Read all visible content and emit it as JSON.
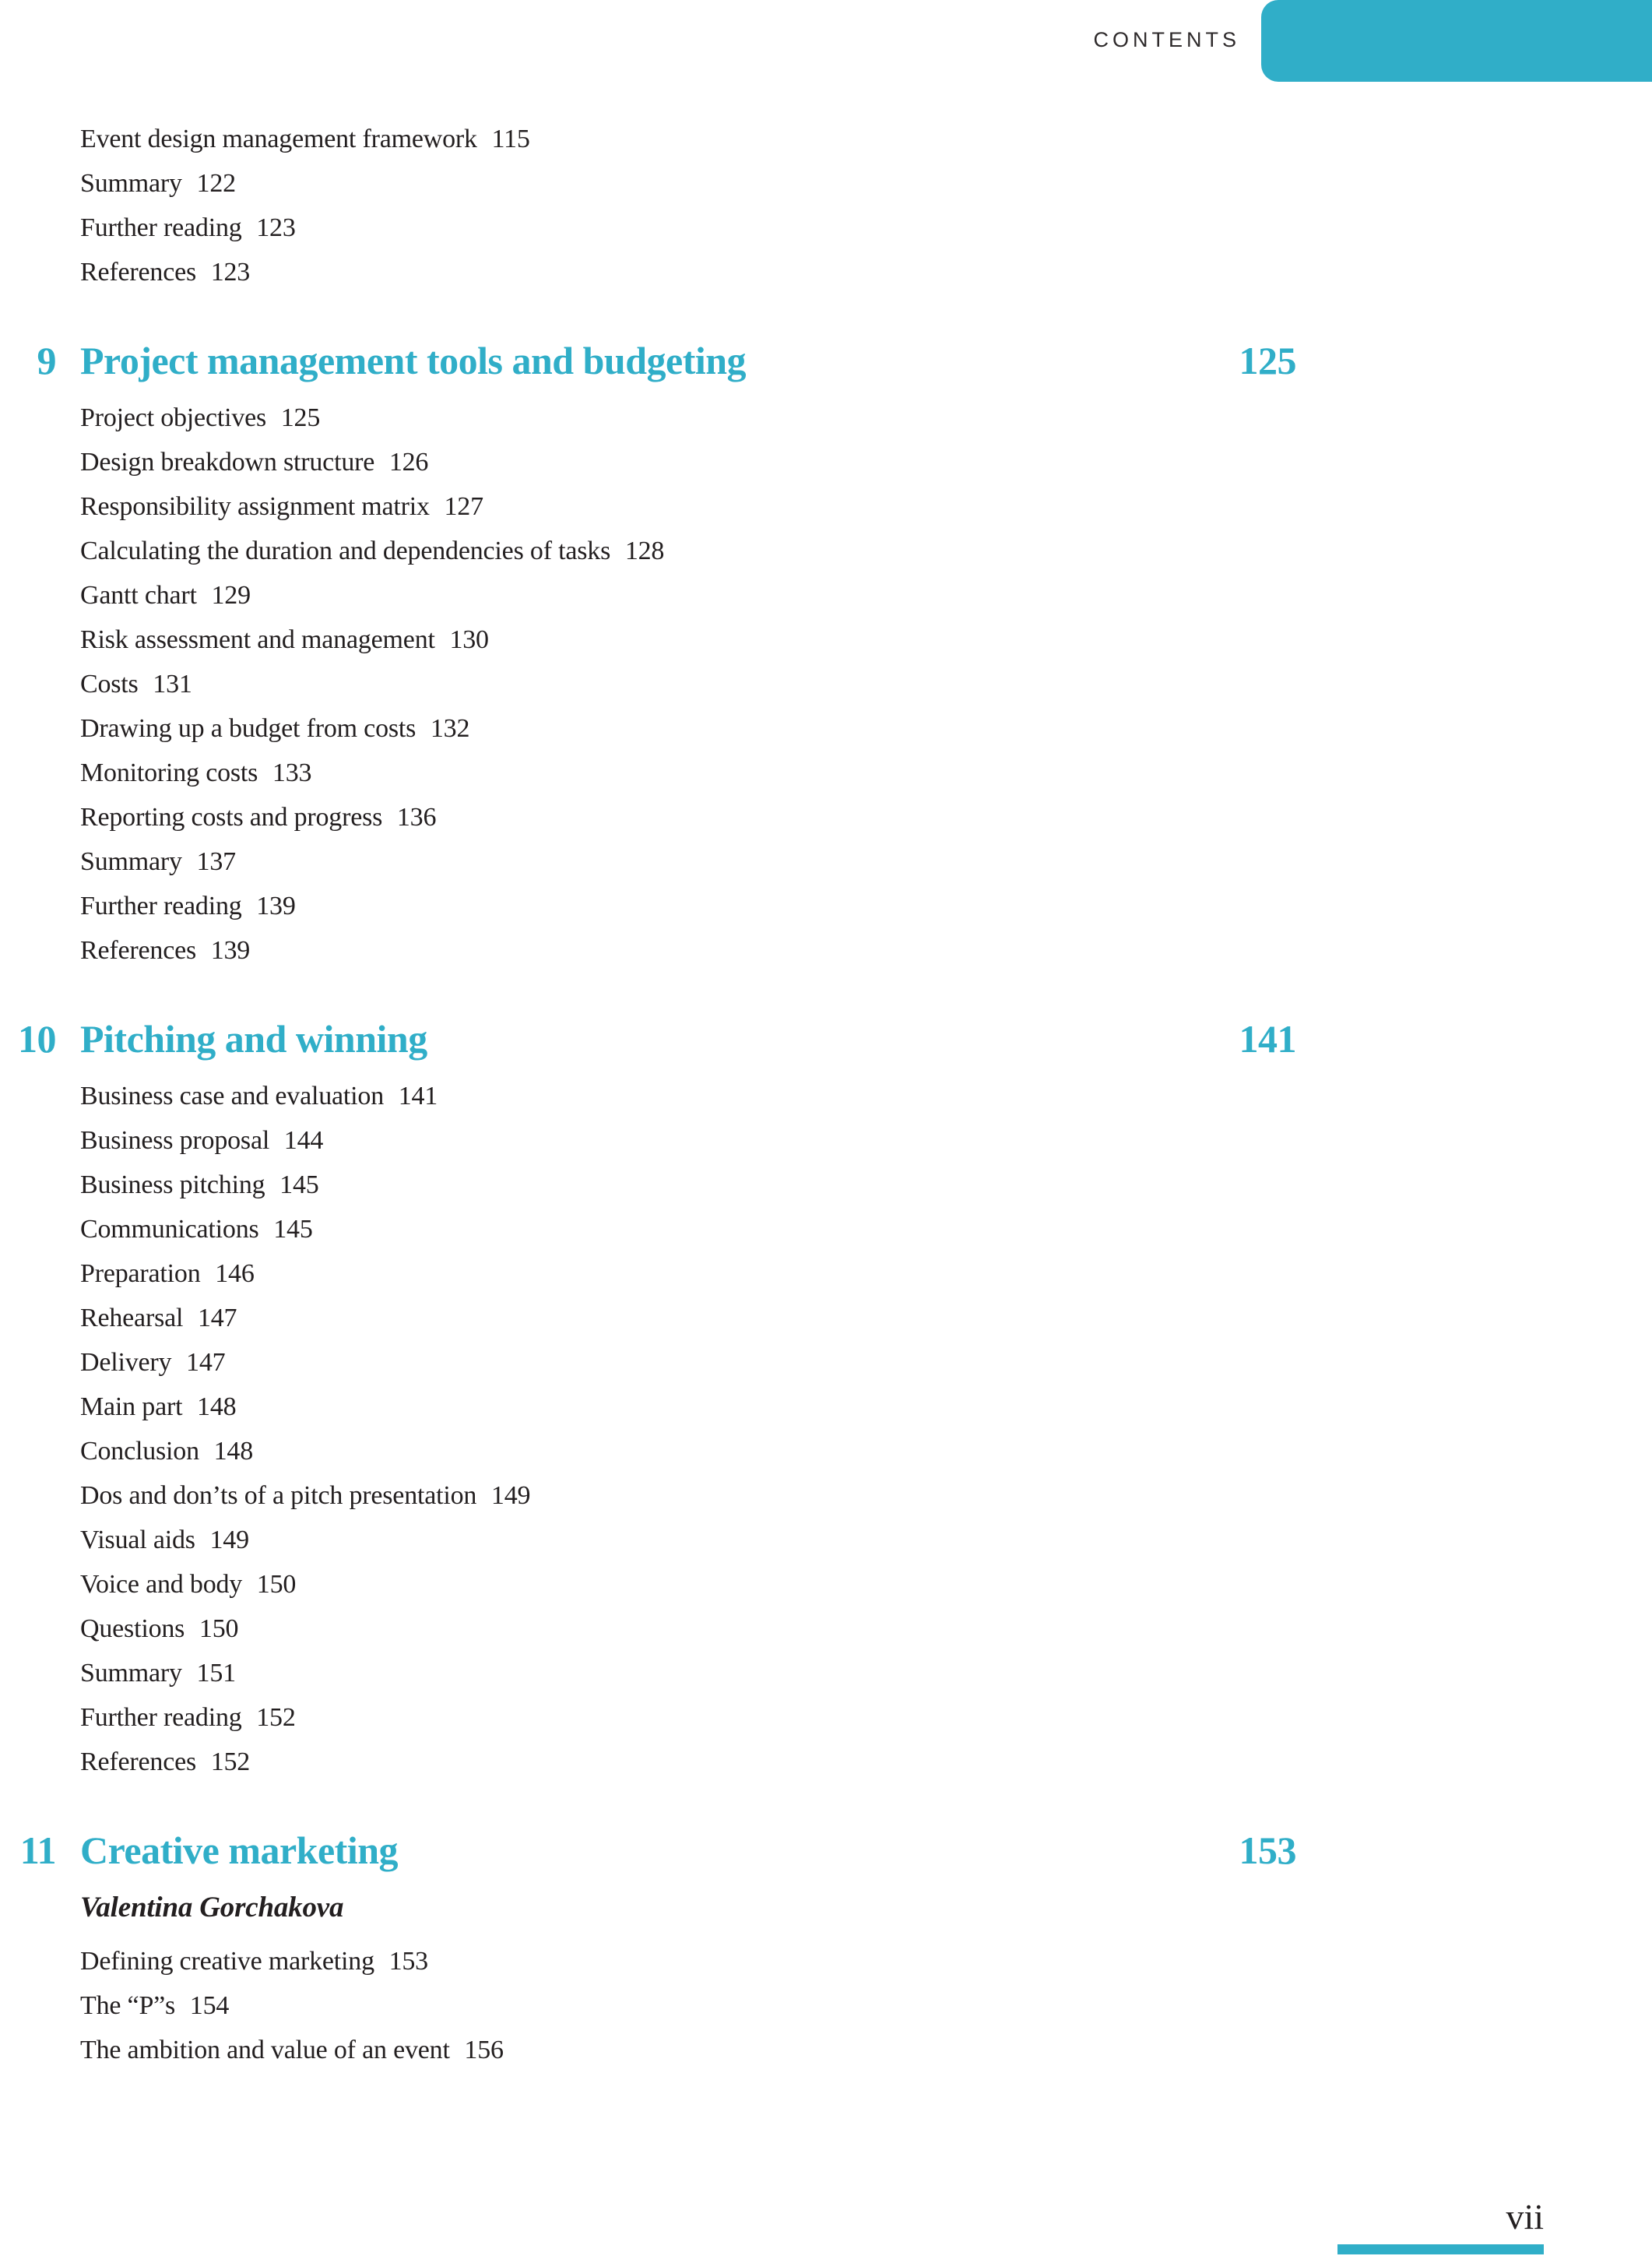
{
  "page": {
    "accent_color": "#30aec8",
    "text_color": "#231f20"
  },
  "header": {
    "label": "CONTENTS"
  },
  "footer": {
    "page_number": "vii"
  },
  "toc": {
    "leading_items": [
      {
        "label": "Event design management framework",
        "page": "115"
      },
      {
        "label": "Summary",
        "page": "122"
      },
      {
        "label": "Further reading",
        "page": "123"
      },
      {
        "label": "References",
        "page": "123"
      }
    ],
    "chapters": [
      {
        "number": "9",
        "title": "Project management tools and budgeting",
        "page": "125",
        "author": "",
        "items": [
          {
            "label": "Project objectives",
            "page": "125"
          },
          {
            "label": "Design breakdown structure",
            "page": "126"
          },
          {
            "label": "Responsibility assignment matrix",
            "page": "127"
          },
          {
            "label": "Calculating the duration and dependencies of tasks",
            "page": "128"
          },
          {
            "label": "Gantt chart",
            "page": "129"
          },
          {
            "label": "Risk assessment and management",
            "page": "130"
          },
          {
            "label": "Costs",
            "page": "131"
          },
          {
            "label": "Drawing up a budget from costs",
            "page": "132"
          },
          {
            "label": "Monitoring costs",
            "page": "133"
          },
          {
            "label": "Reporting costs and progress",
            "page": "136"
          },
          {
            "label": "Summary",
            "page": "137"
          },
          {
            "label": "Further reading",
            "page": "139"
          },
          {
            "label": "References",
            "page": "139"
          }
        ]
      },
      {
        "number": "10",
        "title": "Pitching and winning",
        "page": "141",
        "author": "",
        "items": [
          {
            "label": "Business case and evaluation",
            "page": "141"
          },
          {
            "label": "Business proposal",
            "page": "144"
          },
          {
            "label": "Business pitching",
            "page": "145"
          },
          {
            "label": "Communications",
            "page": "145"
          },
          {
            "label": "Preparation",
            "page": "146"
          },
          {
            "label": "Rehearsal",
            "page": "147"
          },
          {
            "label": "Delivery",
            "page": "147"
          },
          {
            "label": "Main part",
            "page": "148"
          },
          {
            "label": "Conclusion",
            "page": "148"
          },
          {
            "label": "Dos and don’ts of a pitch presentation",
            "page": "149"
          },
          {
            "label": "Visual aids",
            "page": "149"
          },
          {
            "label": "Voice and body",
            "page": "150"
          },
          {
            "label": "Questions",
            "page": "150"
          },
          {
            "label": "Summary",
            "page": "151"
          },
          {
            "label": "Further reading",
            "page": "152"
          },
          {
            "label": "References",
            "page": "152"
          }
        ]
      },
      {
        "number": "11",
        "title": "Creative marketing",
        "page": "153",
        "author": "Valentina Gorchakova",
        "items": [
          {
            "label": "Defining creative marketing",
            "page": "153"
          },
          {
            "label": "The “P”s",
            "page": "154"
          },
          {
            "label": "The ambition and value of an event",
            "page": "156"
          }
        ]
      }
    ]
  }
}
